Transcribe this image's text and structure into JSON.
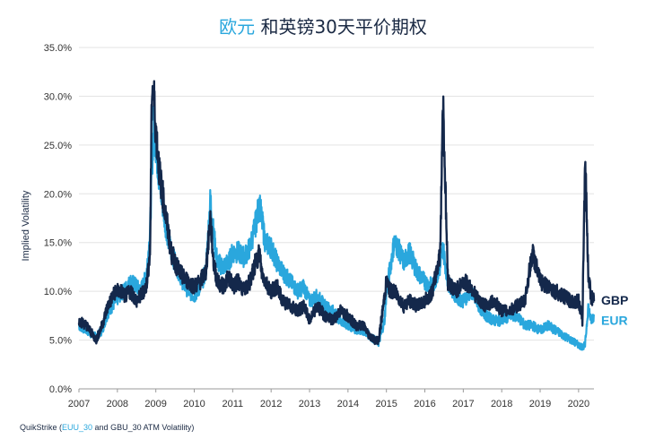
{
  "title": {
    "highlight": "欧元",
    "rest": " 和英镑30天平价期权"
  },
  "source_note": {
    "prefix": "QuikStrike (",
    "highlight": "EUU_30",
    "suffix": " and GBU_30 ATM Volatility)"
  },
  "colors": {
    "gbp": "#14284b",
    "eur": "#2aa7dd",
    "grid": "#e3e3e3",
    "axis": "#9a9a9a"
  },
  "chart_data": {
    "type": "line",
    "title": "欧元 和英镑30天平价期权",
    "ylabel": "Implied Volatility",
    "xlabel": "",
    "xlim": [
      2007.0,
      2020.4
    ],
    "ylim": [
      0,
      35
    ],
    "grid": true,
    "legend_position": "right-end-labels",
    "x_tick_labels": [
      "2007",
      "2008",
      "2009",
      "2010",
      "2011",
      "2012",
      "2013",
      "2014",
      "2015",
      "2016",
      "2017",
      "2018",
      "2019",
      "2020"
    ],
    "y_tick_labels": [
      "0.0%",
      "5.0%",
      "10.0%",
      "15.0%",
      "20.0%",
      "25.0%",
      "30.0%",
      "35.0%"
    ],
    "y_ticks": [
      0,
      5,
      10,
      15,
      20,
      25,
      30,
      35
    ],
    "series": [
      {
        "name": "EUR",
        "x": [
          2007.0,
          2007.2,
          2007.45,
          2007.6,
          2007.75,
          2007.95,
          2008.1,
          2008.2,
          2008.35,
          2008.5,
          2008.6,
          2008.75,
          2008.85,
          2008.9,
          2008.95,
          2009.0,
          2009.1,
          2009.25,
          2009.4,
          2009.55,
          2009.7,
          2009.85,
          2010.0,
          2010.15,
          2010.3,
          2010.42,
          2010.5,
          2010.6,
          2010.75,
          2010.9,
          2011.0,
          2011.15,
          2011.3,
          2011.45,
          2011.6,
          2011.7,
          2011.75,
          2011.85,
          2012.0,
          2012.15,
          2012.3,
          2012.5,
          2012.7,
          2012.85,
          2013.0,
          2013.2,
          2013.4,
          2013.6,
          2013.8,
          2014.0,
          2014.2,
          2014.4,
          2014.55,
          2014.7,
          2014.8,
          2014.95,
          2015.0,
          2015.1,
          2015.2,
          2015.3,
          2015.45,
          2015.6,
          2015.8,
          2016.0,
          2016.2,
          2016.4,
          2016.47,
          2016.6,
          2016.8,
          2017.0,
          2017.2,
          2017.4,
          2017.6,
          2017.8,
          2018.0,
          2018.2,
          2018.4,
          2018.6,
          2018.8,
          2019.0,
          2019.2,
          2019.4,
          2019.6,
          2019.8,
          2020.0,
          2020.1,
          2020.17,
          2020.25,
          2020.32,
          2020.4
        ],
        "values": [
          6.5,
          6.0,
          5.3,
          6.0,
          7.8,
          9.0,
          9.8,
          10.2,
          11.0,
          10.5,
          10.0,
          11.5,
          16.0,
          23.0,
          27.0,
          25.0,
          21.0,
          17.0,
          14.0,
          12.5,
          11.0,
          10.0,
          9.5,
          10.5,
          12.0,
          19.5,
          16.0,
          13.0,
          12.5,
          13.0,
          14.0,
          14.0,
          13.5,
          14.5,
          17.0,
          19.0,
          17.5,
          15.0,
          14.5,
          13.0,
          12.0,
          11.0,
          10.0,
          10.5,
          9.0,
          9.5,
          8.5,
          8.0,
          7.0,
          6.5,
          6.0,
          6.0,
          5.5,
          5.0,
          4.7,
          7.0,
          10.0,
          12.5,
          15.0,
          14.5,
          13.0,
          14.0,
          12.0,
          11.0,
          10.5,
          12.5,
          14.5,
          11.0,
          9.5,
          9.0,
          10.0,
          8.5,
          7.5,
          7.0,
          7.0,
          7.5,
          7.5,
          6.5,
          6.5,
          6.0,
          6.5,
          6.0,
          5.5,
          5.0,
          4.5,
          4.3,
          4.5,
          8.5,
          7.0,
          7.5
        ]
      },
      {
        "name": "GBP",
        "x": [
          2007.0,
          2007.2,
          2007.45,
          2007.6,
          2007.75,
          2007.95,
          2008.1,
          2008.2,
          2008.35,
          2008.5,
          2008.6,
          2008.75,
          2008.85,
          2008.9,
          2008.95,
          2009.0,
          2009.1,
          2009.25,
          2009.4,
          2009.55,
          2009.7,
          2009.85,
          2010.0,
          2010.15,
          2010.3,
          2010.42,
          2010.5,
          2010.6,
          2010.75,
          2010.9,
          2011.0,
          2011.15,
          2011.3,
          2011.45,
          2011.6,
          2011.7,
          2011.75,
          2011.85,
          2012.0,
          2012.15,
          2012.3,
          2012.5,
          2012.7,
          2012.85,
          2013.0,
          2013.2,
          2013.4,
          2013.6,
          2013.8,
          2014.0,
          2014.2,
          2014.4,
          2014.55,
          2014.7,
          2014.8,
          2014.95,
          2015.0,
          2015.1,
          2015.2,
          2015.3,
          2015.45,
          2015.6,
          2015.8,
          2016.0,
          2016.2,
          2016.4,
          2016.47,
          2016.6,
          2016.8,
          2017.0,
          2017.2,
          2017.4,
          2017.6,
          2017.8,
          2018.0,
          2018.2,
          2018.4,
          2018.6,
          2018.8,
          2019.0,
          2019.2,
          2019.4,
          2019.6,
          2019.8,
          2020.0,
          2020.1,
          2020.17,
          2020.25,
          2020.32,
          2020.4
        ],
        "values": [
          7.0,
          6.5,
          5.0,
          6.5,
          8.5,
          10.0,
          10.0,
          9.5,
          10.0,
          9.0,
          9.5,
          10.5,
          14.0,
          31.0,
          30.0,
          26.5,
          22.0,
          18.0,
          14.0,
          12.5,
          11.5,
          11.0,
          10.5,
          11.0,
          12.0,
          17.5,
          13.0,
          11.0,
          10.5,
          11.5,
          10.5,
          11.0,
          10.0,
          11.0,
          13.0,
          14.0,
          12.0,
          11.0,
          10.0,
          10.5,
          9.0,
          8.5,
          8.0,
          8.5,
          7.0,
          8.5,
          7.5,
          7.0,
          8.0,
          7.5,
          6.5,
          6.5,
          5.5,
          5.0,
          5.0,
          9.5,
          11.0,
          10.0,
          10.0,
          9.5,
          8.5,
          9.0,
          8.5,
          9.0,
          10.0,
          14.0,
          30.0,
          11.0,
          10.0,
          11.0,
          10.5,
          9.0,
          8.5,
          9.0,
          8.0,
          8.0,
          8.5,
          9.0,
          14.0,
          11.0,
          10.5,
          10.0,
          9.5,
          9.0,
          9.0,
          7.0,
          24.0,
          12.0,
          9.5,
          9.0
        ]
      }
    ]
  }
}
